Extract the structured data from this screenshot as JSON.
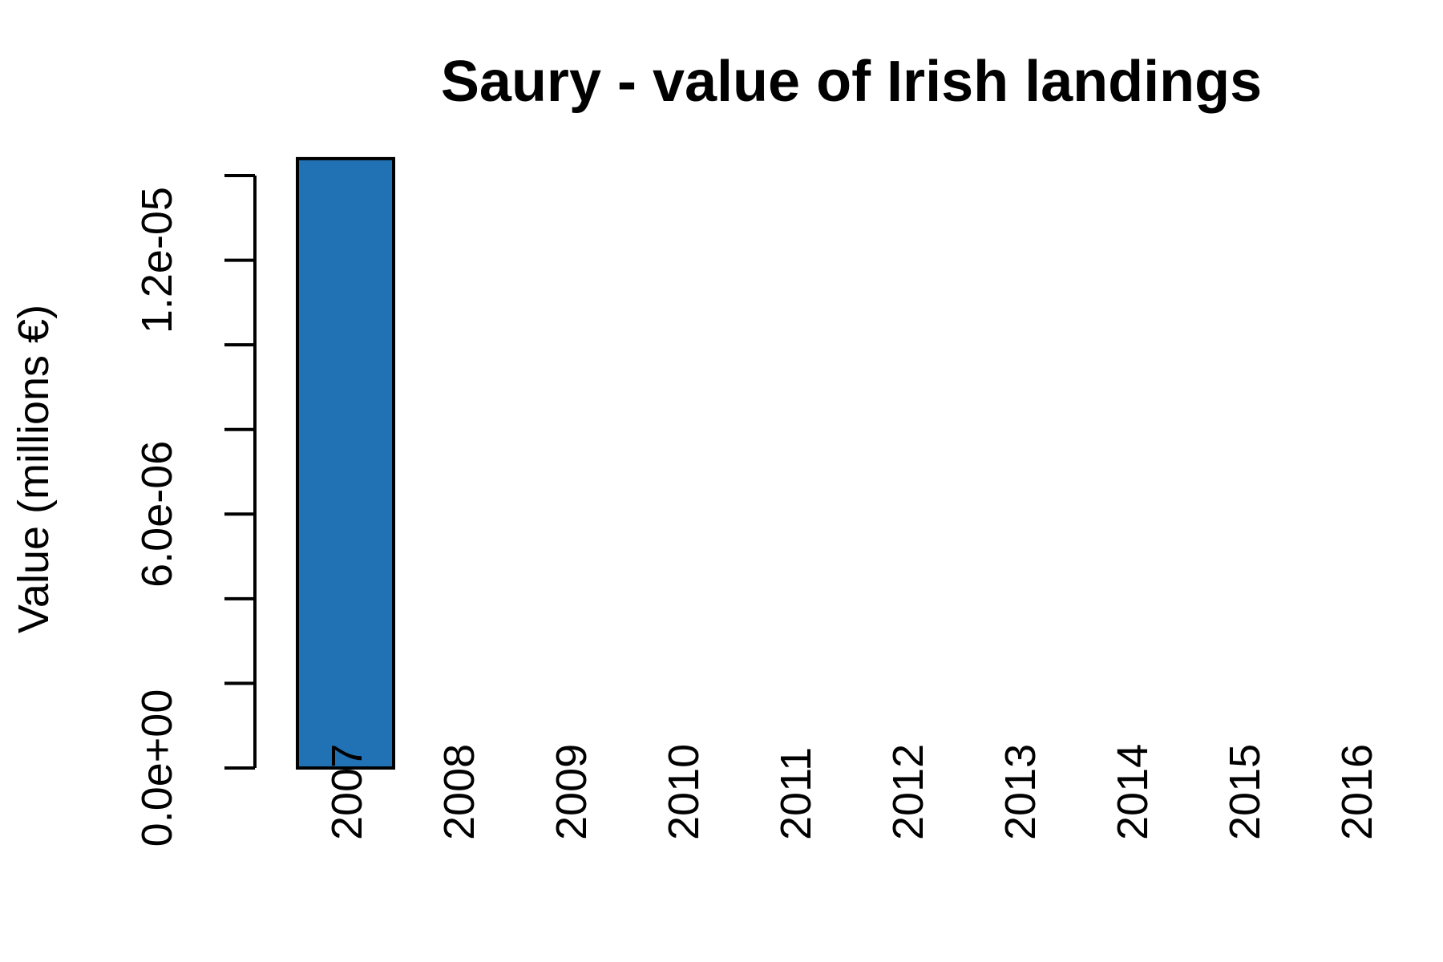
{
  "chart_data": {
    "type": "bar",
    "title": "Saury - value of Irish landings",
    "ylabel": "Value (millions €)",
    "xlabel": "",
    "categories": [
      "2007",
      "2008",
      "2009",
      "2010",
      "2011",
      "2012",
      "2013",
      "2014",
      "2015",
      "2016"
    ],
    "values": [
      1.44e-05,
      0,
      0,
      0,
      0,
      0,
      0,
      0,
      0,
      0
    ],
    "ylim": [
      0,
      1.4e-05
    ],
    "yticks": [
      0,
      2e-06,
      4e-06,
      6e-06,
      8e-06,
      1e-05,
      1.2e-05,
      1.4e-05
    ],
    "ytick_labels": [
      "0.0e+00",
      "",
      "",
      "6.0e-06",
      "",
      "",
      "1.2e-05",
      ""
    ],
    "bar_color": "#2171b5",
    "grid": false,
    "legend": "none"
  }
}
